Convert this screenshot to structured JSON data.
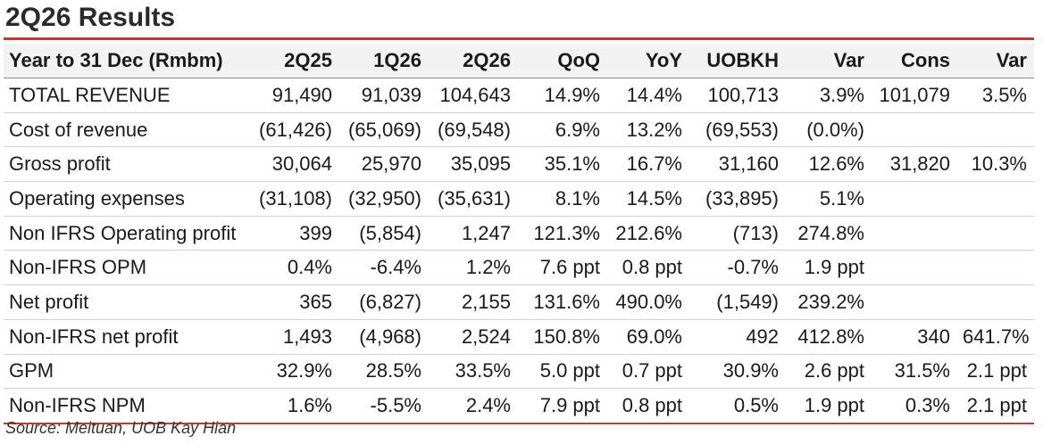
{
  "title": "2Q26 Results",
  "source": "Source: Meituan, UOB Kay Hian",
  "table": {
    "headers": [
      "Year to 31 Dec (Rmbm)",
      "2Q25",
      "1Q26",
      "2Q26",
      "QoQ",
      "YoY",
      "UOBKH",
      "Var",
      "Cons",
      "Var"
    ],
    "rows": [
      [
        "TOTAL REVENUE",
        "91,490",
        "91,039",
        "104,643",
        "14.9%",
        "14.4%",
        "100,713",
        "3.9%",
        "101,079",
        "3.5%"
      ],
      [
        "Cost of revenue",
        "(61,426)",
        "(65,069)",
        "(69,548)",
        "6.9%",
        "13.2%",
        "(69,553)",
        "(0.0%)",
        "",
        ""
      ],
      [
        "Gross profit",
        "30,064",
        "25,970",
        "35,095",
        "35.1%",
        "16.7%",
        "31,160",
        "12.6%",
        "31,820",
        "10.3%"
      ],
      [
        "Operating expenses",
        "(31,108)",
        "(32,950)",
        "(35,631)",
        "8.1%",
        "14.5%",
        "(33,895)",
        "5.1%",
        "",
        ""
      ],
      [
        "Non IFRS Operating profit",
        "399",
        "(5,854)",
        "1,247",
        "121.3%",
        "212.6%",
        "(713)",
        "274.8%",
        "",
        ""
      ],
      [
        "Non-IFRS OPM",
        "0.4%",
        "-6.4%",
        "1.2%",
        "7.6 ppt",
        "0.8 ppt",
        "-0.7%",
        "1.9 ppt",
        "",
        ""
      ],
      [
        "Net profit",
        "365",
        "(6,827)",
        "2,155",
        "131.6%",
        "490.0%",
        "(1,549)",
        "239.2%",
        "",
        ""
      ],
      [
        "Non-IFRS net profit",
        "1,493",
        "(4,968)",
        "2,524",
        "150.8%",
        "69.0%",
        "492",
        "412.8%",
        "340",
        "641.7%"
      ],
      [
        "GPM",
        "32.9%",
        "28.5%",
        "33.5%",
        "5.0 ppt",
        "0.7 ppt",
        "30.9%",
        "2.6 ppt",
        "31.5%",
        "2.1 ppt"
      ],
      [
        "Non-IFRS NPM",
        "1.6%",
        "-5.5%",
        "2.4%",
        "7.9 ppt",
        "0.8 ppt",
        "0.5%",
        "1.9 ppt",
        "0.3%",
        "2.1 ppt"
      ]
    ]
  }
}
